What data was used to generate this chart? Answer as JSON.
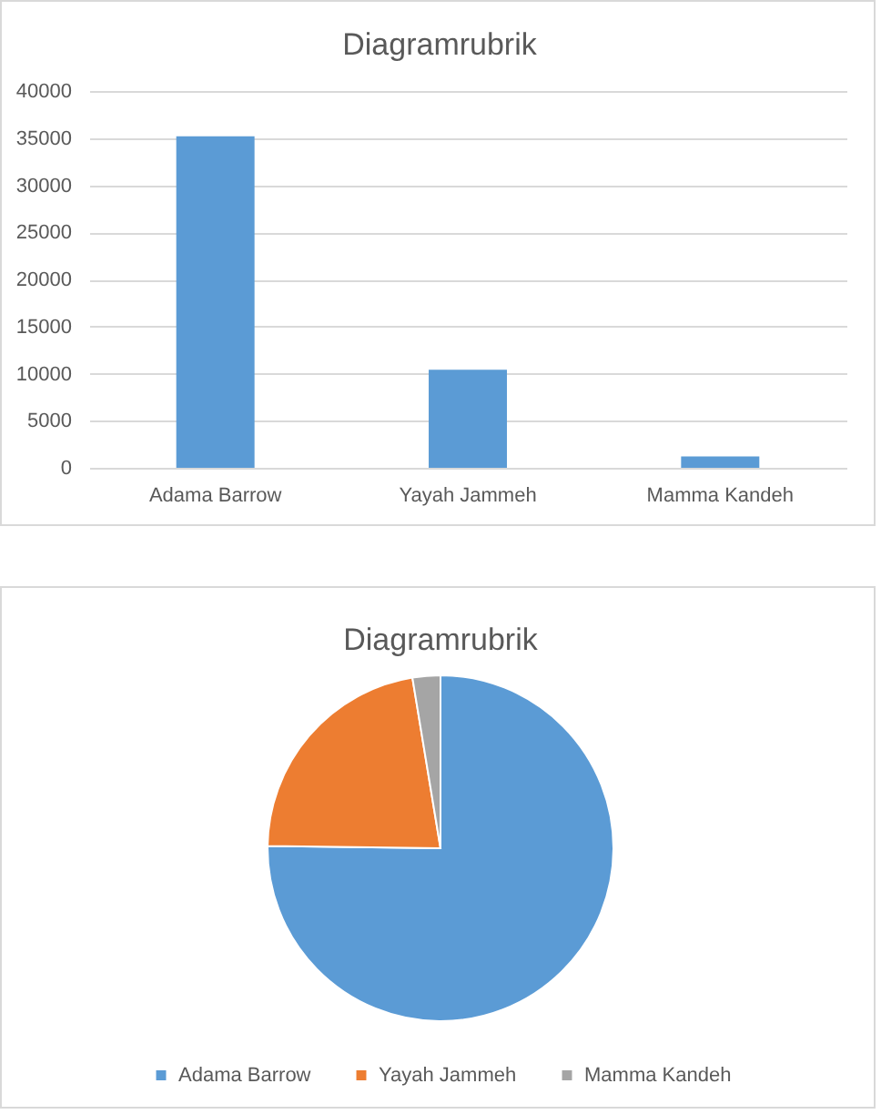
{
  "chart_data": [
    {
      "type": "bar",
      "title": "Diagramrubrik",
      "categories": [
        "Adama Barrow",
        "Yayah Jammeh",
        "Mamma Kandeh"
      ],
      "values": [
        35200,
        10400,
        1200
      ],
      "color": "#5b9bd5",
      "ylim": [
        0,
        40000
      ],
      "yticks": [
        0,
        5000,
        10000,
        15000,
        20000,
        25000,
        30000,
        35000,
        40000
      ],
      "grid": "y"
    },
    {
      "type": "pie",
      "title": "Diagramrubrik",
      "categories": [
        "Adama Barrow",
        "Yayah Jammeh",
        "Mamma Kandeh"
      ],
      "values": [
        75.2,
        22.2,
        2.6
      ],
      "colors": [
        "#5b9bd5",
        "#ed7d31",
        "#a5a5a5"
      ],
      "legend": "bottom"
    }
  ]
}
